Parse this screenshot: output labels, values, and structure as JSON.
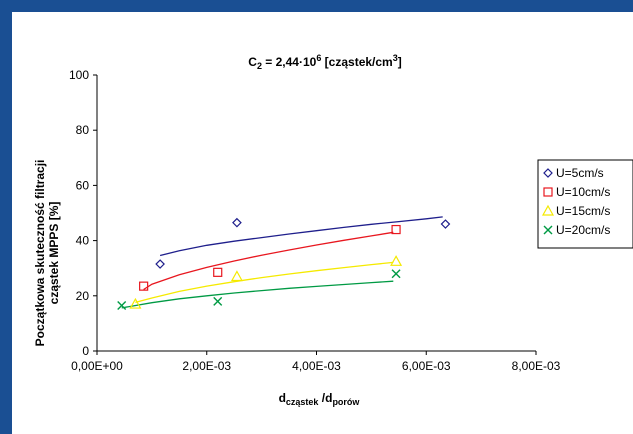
{
  "chart_data": {
    "type": "scatter",
    "title_main": "C",
    "title_sub": "2",
    "title_mid": " = 2,44·10",
    "title_sup": "6",
    "title_end": " [cząstek/cm",
    "title_sup2": "3",
    "title_close": "]",
    "ylabel_line1": "Początkowa skuteczność filtracji",
    "ylabel_line2": "cząstek MPPS [%]",
    "xlabel_main": "d",
    "xlabel_sub1": "cząstek",
    "xlabel_mid": " /d",
    "xlabel_sub2": "porów",
    "xlim": [
      0,
      0.008
    ],
    "ylim": [
      0,
      100
    ],
    "x_ticks": [
      0,
      0.002,
      0.004,
      0.006,
      0.008
    ],
    "x_tick_labels": [
      "0,00E+00",
      "2,00E-03",
      "4,00E-03",
      "6,00E-03",
      "8,00E-03"
    ],
    "y_ticks": [
      0,
      20,
      40,
      60,
      80,
      100
    ],
    "y_tick_labels": [
      "0",
      "20",
      "40",
      "60",
      "80",
      "100"
    ],
    "grid": false,
    "legend_position": "right",
    "series": [
      {
        "name": "U=5cm/s",
        "marker": "diamond",
        "color": "#1f1f8c",
        "points": [
          [
            0.00115,
            31.5
          ],
          [
            0.00255,
            46.5
          ],
          [
            0.00635,
            46
          ]
        ],
        "trend_color": "#1f1f8c",
        "trend": [
          [
            0.00115,
            34.6
          ],
          [
            0.0015,
            36.3
          ],
          [
            0.002,
            38.3
          ],
          [
            0.0025,
            39.8
          ],
          [
            0.003,
            41.1
          ],
          [
            0.0035,
            42.4
          ],
          [
            0.004,
            43.6
          ],
          [
            0.0045,
            44.8
          ],
          [
            0.005,
            45.9
          ],
          [
            0.0055,
            46.9
          ],
          [
            0.006,
            47.9
          ],
          [
            0.0063,
            48.6
          ]
        ]
      },
      {
        "name": "U=10cm/s",
        "marker": "square",
        "color": "#e8171f",
        "points": [
          [
            0.00085,
            23.5
          ],
          [
            0.0022,
            28.5
          ],
          [
            0.00545,
            44
          ]
        ],
        "trend_color": "#e8171f",
        "trend": [
          [
            0.00085,
            22.3
          ],
          [
            0.001,
            24.2
          ],
          [
            0.0015,
            27.6
          ],
          [
            0.002,
            30.3
          ],
          [
            0.0025,
            32.6
          ],
          [
            0.003,
            34.7
          ],
          [
            0.0035,
            36.6
          ],
          [
            0.004,
            38.4
          ],
          [
            0.0045,
            40.1
          ],
          [
            0.005,
            41.7
          ],
          [
            0.0054,
            43
          ]
        ]
      },
      {
        "name": "U=15cm/s",
        "marker": "triangle",
        "color": "#f5ea00",
        "points": [
          [
            0.0007,
            17
          ],
          [
            0.00255,
            27
          ],
          [
            0.00545,
            32.5
          ]
        ],
        "trend_color": "#f5ea00",
        "trend": [
          [
            0.0007,
            17.6
          ],
          [
            0.001,
            19.2
          ],
          [
            0.0015,
            21.6
          ],
          [
            0.002,
            23.5
          ],
          [
            0.0025,
            25.1
          ],
          [
            0.003,
            26.6
          ],
          [
            0.0035,
            27.9
          ],
          [
            0.004,
            29.1
          ],
          [
            0.0045,
            30.2
          ],
          [
            0.005,
            31.3
          ],
          [
            0.0054,
            32.1
          ]
        ]
      },
      {
        "name": "U=20cm/s",
        "marker": "x",
        "color": "#009a44",
        "points": [
          [
            0.00045,
            16.5
          ],
          [
            0.0022,
            18
          ],
          [
            0.00545,
            28
          ]
        ],
        "trend_color": "#009a44",
        "trend": [
          [
            0.00045,
            15.6
          ],
          [
            0.001,
            17.5
          ],
          [
            0.0015,
            18.9
          ],
          [
            0.002,
            20
          ],
          [
            0.0025,
            21
          ],
          [
            0.003,
            21.9
          ],
          [
            0.0035,
            22.7
          ],
          [
            0.004,
            23.4
          ],
          [
            0.0045,
            24.1
          ],
          [
            0.005,
            24.8
          ],
          [
            0.0054,
            25.3
          ]
        ]
      }
    ]
  }
}
